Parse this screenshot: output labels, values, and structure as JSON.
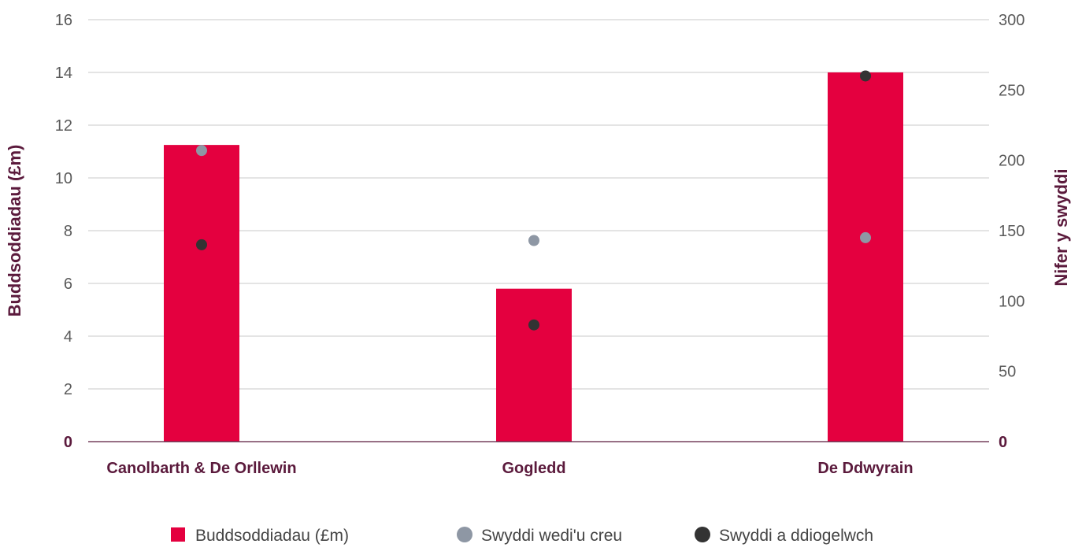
{
  "chart_data": {
    "type": "bar",
    "categories": [
      "Canolbarth & De Orllewin",
      "Gogledd",
      "De Ddwyrain"
    ],
    "series": [
      {
        "name": "Buddsoddiadau (£m)",
        "type": "bar",
        "axis": "left",
        "color": "#e4003f",
        "values": [
          11.25,
          5.8,
          14.0
        ]
      },
      {
        "name": "Swyddi wedi'u creu",
        "type": "scatter",
        "axis": "right",
        "color": "#8e97a4",
        "values": [
          207,
          143,
          145
        ]
      },
      {
        "name": "Swyddi a ddiogelwch",
        "type": "scatter",
        "axis": "right",
        "color": "#333333",
        "values": [
          140,
          83,
          260
        ]
      }
    ],
    "ylabel": "Buddsoddiadau (£m)",
    "y2label": "Nifer y swyddi",
    "ylim": [
      0,
      16
    ],
    "y2lim": [
      0,
      300
    ],
    "yticks": [
      "0",
      "2",
      "4",
      "6",
      "8",
      "10",
      "12",
      "14",
      "16"
    ],
    "y2ticks": [
      "0",
      "50",
      "100",
      "150",
      "200",
      "250",
      "300"
    ],
    "grid": true,
    "legend_position": "bottom",
    "colors": {
      "axis_title": "#5b1a3c",
      "category_label": "#5b1a3c",
      "gridline": "#c8c8c8",
      "baseline": "#5b1a3c"
    }
  }
}
